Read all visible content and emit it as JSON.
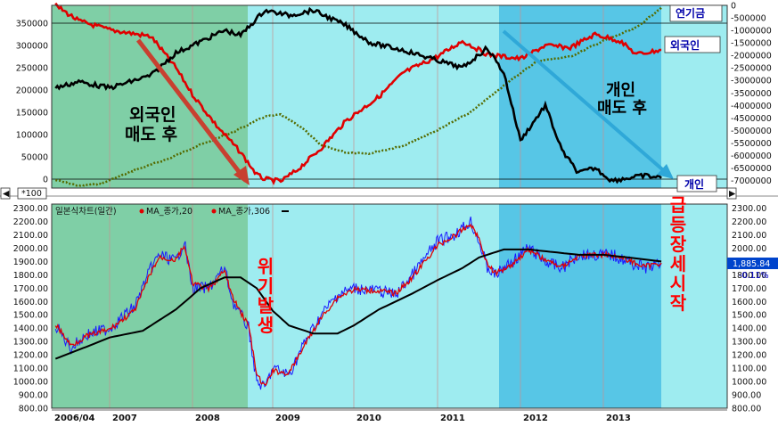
{
  "chart_data": [
    {
      "type": "line",
      "panel": "investor_flows",
      "x": [
        "2006/04",
        "2007",
        "2008",
        "2009",
        "2010",
        "2011",
        "2012",
        "2013"
      ],
      "left_axis_ticks": [
        "350000",
        "300000",
        "250000",
        "200000",
        "150000",
        "100000",
        "50000",
        "0"
      ],
      "right_axis_ticks": [
        "0",
        "-500000",
        "-1000000",
        "-1500000",
        "-2000000",
        "-2500000",
        "-3000000",
        "-3500000",
        "-4000000",
        "-4500000",
        "-5000000",
        "-5500000",
        "-6000000",
        "-6500000",
        "-7000000"
      ],
      "ylim_left": [
        -20000,
        390000
      ],
      "ylim_right": [
        -7300000,
        0
      ],
      "series": [
        {
          "name": "연기금",
          "axis": "left",
          "color": "#556b00",
          "style": "dotted",
          "x": [
            2006.3,
            2006.6,
            2006.9,
            2007.3,
            2007.7,
            2008.0,
            2008.5,
            2008.9,
            2009.1,
            2009.4,
            2009.6,
            2009.9,
            2010.2,
            2010.6,
            2011.0,
            2011.4,
            2011.8,
            2012.2,
            2012.6,
            2013.0,
            2013.4,
            2013.7
          ],
          "values": [
            -2000,
            -15000,
            -10000,
            20000,
            45000,
            70000,
            105000,
            140000,
            145000,
            110000,
            75000,
            60000,
            58000,
            75000,
            110000,
            150000,
            210000,
            265000,
            275000,
            310000,
            340000,
            385000
          ]
        },
        {
          "name": "외국인",
          "axis": "left",
          "color": "#e00000",
          "style": "solid",
          "x": [
            2006.3,
            2006.6,
            2007.0,
            2007.5,
            2007.8,
            2008.0,
            2008.3,
            2008.6,
            2008.8,
            2008.9,
            2009.1,
            2009.3,
            2009.6,
            2009.9,
            2010.3,
            2010.6,
            2011.0,
            2011.3,
            2011.6,
            2012.0,
            2012.3,
            2012.6,
            2012.9,
            2013.2,
            2013.4,
            2013.7
          ],
          "values": [
            390000,
            355000,
            335000,
            320000,
            250000,
            190000,
            120000,
            60000,
            10000,
            0,
            -5000,
            20000,
            70000,
            130000,
            185000,
            240000,
            275000,
            310000,
            280000,
            270000,
            300000,
            295000,
            325000,
            310000,
            280000,
            290000
          ]
        },
        {
          "name": "개인",
          "axis": "right",
          "color": "#000000",
          "style": "solid",
          "x": [
            2006.3,
            2006.6,
            2007.0,
            2007.5,
            2007.8,
            2008.0,
            2008.4,
            2008.6,
            2008.9,
            2009.2,
            2009.5,
            2009.9,
            2010.2,
            2010.6,
            2011.0,
            2011.3,
            2011.6,
            2011.8,
            2012.0,
            2012.3,
            2012.5,
            2012.7,
            2012.9,
            2013.1,
            2013.3,
            2013.5,
            2013.7
          ],
          "values": [
            -3300000,
            -3050000,
            -3300000,
            -2800000,
            -1900000,
            -1600000,
            -1000000,
            -1200000,
            -200000,
            -400000,
            -200000,
            -800000,
            -1500000,
            -1800000,
            -2200000,
            -2500000,
            -1700000,
            -2700000,
            -5400000,
            -4000000,
            -5800000,
            -6700000,
            -6500000,
            -7000000,
            -6900000,
            -6800000,
            -6900000
          ]
        }
      ],
      "horizontal_lines_left": [
        350000,
        0
      ],
      "legend_labels": {
        "pension": "연기금",
        "foreign": "외국인",
        "individual": "개인"
      },
      "scale_note": "*100",
      "annotations": [
        {
          "text": [
            "외국인",
            "매도 후"
          ],
          "color": "#000000"
        },
        {
          "text": [
            "개인",
            "매도 후"
          ],
          "color": "#000000"
        }
      ]
    },
    {
      "type": "line",
      "panel": "kospi_daily",
      "title": "일본식차트(일간)",
      "legend": [
        {
          "label": "MA_종가,20",
          "color": "#e00000"
        },
        {
          "label": "MA_종가,306",
          "color": "#000000"
        }
      ],
      "x_ticks": [
        "2006/04",
        "2007",
        "2008",
        "2009",
        "2010",
        "2011",
        "2012",
        "2013"
      ],
      "y_ticks": [
        "2300.00",
        "2200.00",
        "2100.00",
        "2000.00",
        "1900.00",
        "1800.00",
        "1700.00",
        "1600.00",
        "1500.00",
        "1400.00",
        "1300.00",
        "1200.00",
        "1100.00",
        "1000.00",
        "900.00",
        "800.00"
      ],
      "ylim": [
        800,
        2330
      ],
      "last_value": "1,885.84",
      "last_change": "-0.11%",
      "series": [
        {
          "name": "종가",
          "color": "#1a1aff",
          "x": [
            2006.3,
            2006.5,
            2006.7,
            2007.0,
            2007.3,
            2007.5,
            2007.6,
            2007.8,
            2007.9,
            2008.0,
            2008.2,
            2008.4,
            2008.5,
            2008.6,
            2008.7,
            2008.8,
            2008.9,
            2009.0,
            2009.2,
            2009.4,
            2009.6,
            2009.8,
            2010.0,
            2010.3,
            2010.5,
            2010.7,
            2011.0,
            2011.2,
            2011.4,
            2011.5,
            2011.6,
            2011.7,
            2011.9,
            2012.1,
            2012.3,
            2012.5,
            2012.7,
            2012.9,
            2013.1,
            2013.3,
            2013.5,
            2013.7
          ],
          "values": [
            1420,
            1250,
            1350,
            1400,
            1560,
            1850,
            1950,
            1900,
            2050,
            1700,
            1700,
            1850,
            1600,
            1500,
            1400,
            1000,
            950,
            1100,
            1050,
            1300,
            1500,
            1650,
            1700,
            1680,
            1650,
            1800,
            2050,
            2100,
            2200,
            2050,
            1850,
            1800,
            1900,
            2000,
            1900,
            1850,
            1950,
            1950,
            1950,
            1900,
            1850,
            1885
          ]
        },
        {
          "name": "MA_종가,20",
          "color": "#e00000",
          "x": [
            2006.3,
            2006.5,
            2006.7,
            2007.0,
            2007.3,
            2007.5,
            2007.6,
            2007.8,
            2007.9,
            2008.0,
            2008.2,
            2008.4,
            2008.5,
            2008.6,
            2008.7,
            2008.8,
            2008.9,
            2009.0,
            2009.2,
            2009.4,
            2009.6,
            2009.8,
            2010.0,
            2010.3,
            2010.5,
            2010.7,
            2011.0,
            2011.2,
            2011.4,
            2011.5,
            2011.6,
            2011.7,
            2011.9,
            2012.1,
            2012.3,
            2012.5,
            2012.7,
            2012.9,
            2013.1,
            2013.3,
            2013.5,
            2013.7
          ],
          "values": [
            1430,
            1270,
            1340,
            1390,
            1530,
            1820,
            1930,
            1910,
            2020,
            1740,
            1690,
            1830,
            1630,
            1520,
            1420,
            1050,
            960,
            1080,
            1060,
            1280,
            1480,
            1630,
            1690,
            1680,
            1660,
            1780,
            2020,
            2090,
            2180,
            2070,
            1880,
            1810,
            1880,
            1990,
            1910,
            1860,
            1940,
            1950,
            1950,
            1910,
            1860,
            1890
          ]
        },
        {
          "name": "MA_종가,306",
          "color": "#000000",
          "x": [
            2006.3,
            2006.7,
            2007.0,
            2007.4,
            2007.8,
            2008.1,
            2008.4,
            2008.6,
            2008.8,
            2009.0,
            2009.2,
            2009.5,
            2009.8,
            2010.0,
            2010.3,
            2010.7,
            2011.0,
            2011.3,
            2011.5,
            2011.8,
            2012.1,
            2012.4,
            2012.7,
            2013.0,
            2013.3,
            2013.7
          ],
          "values": [
            1170,
            1260,
            1330,
            1380,
            1540,
            1700,
            1780,
            1780,
            1700,
            1530,
            1420,
            1360,
            1360,
            1420,
            1540,
            1660,
            1760,
            1850,
            1930,
            1990,
            1990,
            1970,
            1950,
            1950,
            1930,
            1900
          ]
        }
      ],
      "annotations": [
        {
          "text": "위기발생",
          "color": "#ff0000"
        },
        {
          "text": "급등장세시작",
          "color": "#ff0000"
        }
      ]
    }
  ]
}
